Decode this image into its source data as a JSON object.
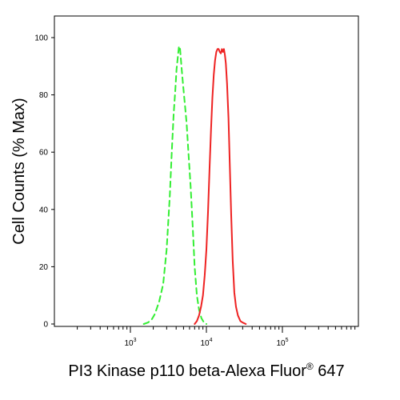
{
  "chart_data": {
    "type": "line",
    "title": "",
    "xlabel": "PI3 Kinase p110 beta-Alexa Fluor",
    "xlabel_superscript": "®",
    "xlabel_suffix": " 647",
    "ylabel": "Cell Counts (% Max)",
    "x_scale": "log",
    "xlim": [
      100,
      1000000
    ],
    "ylim": [
      0,
      100
    ],
    "y_ticks": [
      0,
      20,
      40,
      60,
      80,
      100
    ],
    "y_tick_labels": [
      "0",
      "20",
      "40",
      "60",
      "80",
      "100"
    ],
    "x_ticks": [
      1000,
      10000,
      100000
    ],
    "x_tick_labels": [
      {
        "base": "10",
        "exp": "3"
      },
      {
        "base": "10",
        "exp": "4"
      },
      {
        "base": "10",
        "exp": "5"
      }
    ],
    "grid": false,
    "legend": "none",
    "series": [
      {
        "style": "dashed",
        "color": "#33ee33",
        "x": [
          1500,
          1700,
          1900,
          2100,
          2400,
          2700,
          3000,
          3300,
          3500,
          3700,
          3900,
          4050,
          4200,
          4350,
          4500,
          4700,
          4950,
          5200,
          5500,
          5800,
          6200,
          6600,
          7000,
          7500,
          8000,
          8600,
          9300,
          10000
        ],
        "y": [
          0,
          0.5,
          1.5,
          3.5,
          8,
          14,
          26,
          45,
          60,
          73,
          82,
          89,
          93,
          97,
          96,
          90,
          83,
          77,
          70,
          60,
          48,
          34,
          20,
          10,
          5,
          2,
          0.5,
          0
        ]
      },
      {
        "style": "solid",
        "color": "#ee2222",
        "x": [
          7000,
          7500,
          8000,
          8500,
          9000,
          9500,
          10000,
          10500,
          11000,
          11500,
          12000,
          12500,
          13000,
          13500,
          14000,
          14500,
          15000,
          15500,
          16000,
          16500,
          17000,
          17500,
          18000,
          18700,
          19500,
          20300,
          21200,
          22200,
          23300,
          24500,
          26000,
          28000,
          30000,
          33000
        ],
        "y": [
          0,
          1,
          3,
          6,
          10,
          17,
          26,
          39,
          54,
          68,
          79,
          87,
          92,
          95,
          96,
          96,
          95,
          94.5,
          96,
          95,
          96,
          94,
          91,
          84,
          72,
          56,
          38,
          22,
          11,
          6,
          3,
          1,
          0.5,
          0
        ]
      }
    ]
  }
}
